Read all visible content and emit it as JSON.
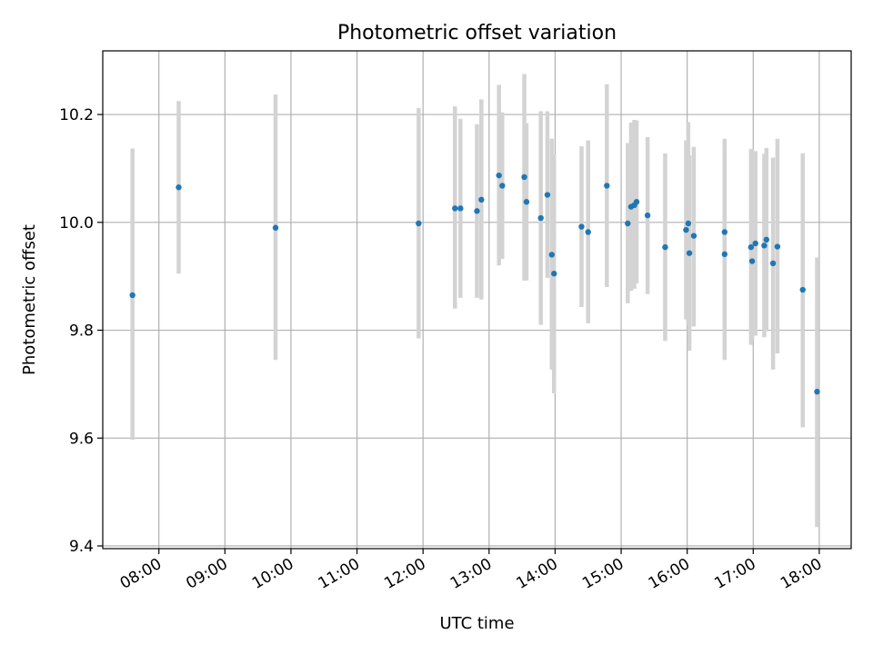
{
  "chart_data": {
    "type": "scatter",
    "title": "Photometric offset variation",
    "xlabel": "UTC time",
    "ylabel": "Photometric offset",
    "x_ticks": [
      "08:00",
      "09:00",
      "10:00",
      "11:00",
      "12:00",
      "13:00",
      "14:00",
      "15:00",
      "16:00",
      "17:00",
      "18:00"
    ],
    "y_ticks": [
      "9.4",
      "9.6",
      "9.8",
      "10.0",
      "10.2"
    ],
    "ylim": [
      9.395,
      10.318
    ],
    "xlim": [
      "07:09",
      "18:29"
    ],
    "grid": true,
    "marker_color": "#1f77b4",
    "errorbar_color": "#d3d3d3",
    "points": [
      {
        "x": "07:36",
        "y": 9.865,
        "lo": 9.597,
        "hi": 10.137
      },
      {
        "x": "08:18",
        "y": 10.065,
        "lo": 9.905,
        "hi": 10.225
      },
      {
        "x": "09:46",
        "y": 9.99,
        "lo": 9.745,
        "hi": 10.237
      },
      {
        "x": "11:56",
        "y": 9.998,
        "lo": 9.785,
        "hi": 10.212
      },
      {
        "x": "12:29",
        "y": 10.026,
        "lo": 9.84,
        "hi": 10.215
      },
      {
        "x": "12:34",
        "y": 10.026,
        "lo": 9.86,
        "hi": 10.192
      },
      {
        "x": "12:49",
        "y": 10.021,
        "lo": 9.86,
        "hi": 10.182
      },
      {
        "x": "12:53",
        "y": 10.042,
        "lo": 9.857,
        "hi": 10.228
      },
      {
        "x": "13:09",
        "y": 10.087,
        "lo": 9.92,
        "hi": 10.255
      },
      {
        "x": "13:12",
        "y": 10.068,
        "lo": 9.932,
        "hi": 10.204
      },
      {
        "x": "13:32",
        "y": 10.084,
        "lo": 9.892,
        "hi": 10.275
      },
      {
        "x": "13:34",
        "y": 10.038,
        "lo": 9.892,
        "hi": 10.184
      },
      {
        "x": "13:47",
        "y": 10.008,
        "lo": 9.81,
        "hi": 10.206
      },
      {
        "x": "13:53",
        "y": 10.051,
        "lo": 9.897,
        "hi": 10.206
      },
      {
        "x": "13:57",
        "y": 9.94,
        "lo": 9.727,
        "hi": 10.155
      },
      {
        "x": "13:59",
        "y": 9.905,
        "lo": 9.683,
        "hi": 10.127
      },
      {
        "x": "14:24",
        "y": 9.992,
        "lo": 9.843,
        "hi": 10.141
      },
      {
        "x": "14:30",
        "y": 9.982,
        "lo": 9.813,
        "hi": 10.152
      },
      {
        "x": "14:47",
        "y": 10.068,
        "lo": 9.88,
        "hi": 10.256
      },
      {
        "x": "15:06",
        "y": 9.998,
        "lo": 9.85,
        "hi": 10.147
      },
      {
        "x": "15:09",
        "y": 10.029,
        "lo": 9.873,
        "hi": 10.185
      },
      {
        "x": "15:12",
        "y": 10.032,
        "lo": 9.877,
        "hi": 10.19
      },
      {
        "x": "15:14",
        "y": 10.038,
        "lo": 9.887,
        "hi": 10.189
      },
      {
        "x": "15:24",
        "y": 10.013,
        "lo": 9.867,
        "hi": 10.158
      },
      {
        "x": "15:40",
        "y": 9.954,
        "lo": 9.78,
        "hi": 10.128
      },
      {
        "x": "15:59",
        "y": 9.986,
        "lo": 9.82,
        "hi": 10.152
      },
      {
        "x": "16:01",
        "y": 9.998,
        "lo": 9.81,
        "hi": 10.186
      },
      {
        "x": "16:02",
        "y": 9.943,
        "lo": 9.762,
        "hi": 10.124
      },
      {
        "x": "16:06",
        "y": 9.975,
        "lo": 9.807,
        "hi": 10.14
      },
      {
        "x": "16:34",
        "y": 9.982,
        "lo": 9.808,
        "hi": 10.155
      },
      {
        "x": "16:34",
        "y": 9.941,
        "lo": 9.745,
        "hi": 10.135
      },
      {
        "x": "16:58",
        "y": 9.954,
        "lo": 9.773,
        "hi": 10.136
      },
      {
        "x": "16:59",
        "y": 9.928,
        "lo": 9.782,
        "hi": 10.135
      },
      {
        "x": "17:02",
        "y": 9.961,
        "lo": 9.79,
        "hi": 10.132
      },
      {
        "x": "17:10",
        "y": 9.957,
        "lo": 9.787,
        "hi": 10.127
      },
      {
        "x": "17:12",
        "y": 9.968,
        "lo": 9.798,
        "hi": 10.138
      },
      {
        "x": "17:18",
        "y": 9.924,
        "lo": 9.727,
        "hi": 10.12
      },
      {
        "x": "17:22",
        "y": 9.955,
        "lo": 9.757,
        "hi": 10.155
      },
      {
        "x": "17:45",
        "y": 9.875,
        "lo": 9.62,
        "hi": 10.128
      },
      {
        "x": "17:58",
        "y": 9.686,
        "lo": 9.435,
        "hi": 9.935
      }
    ]
  }
}
